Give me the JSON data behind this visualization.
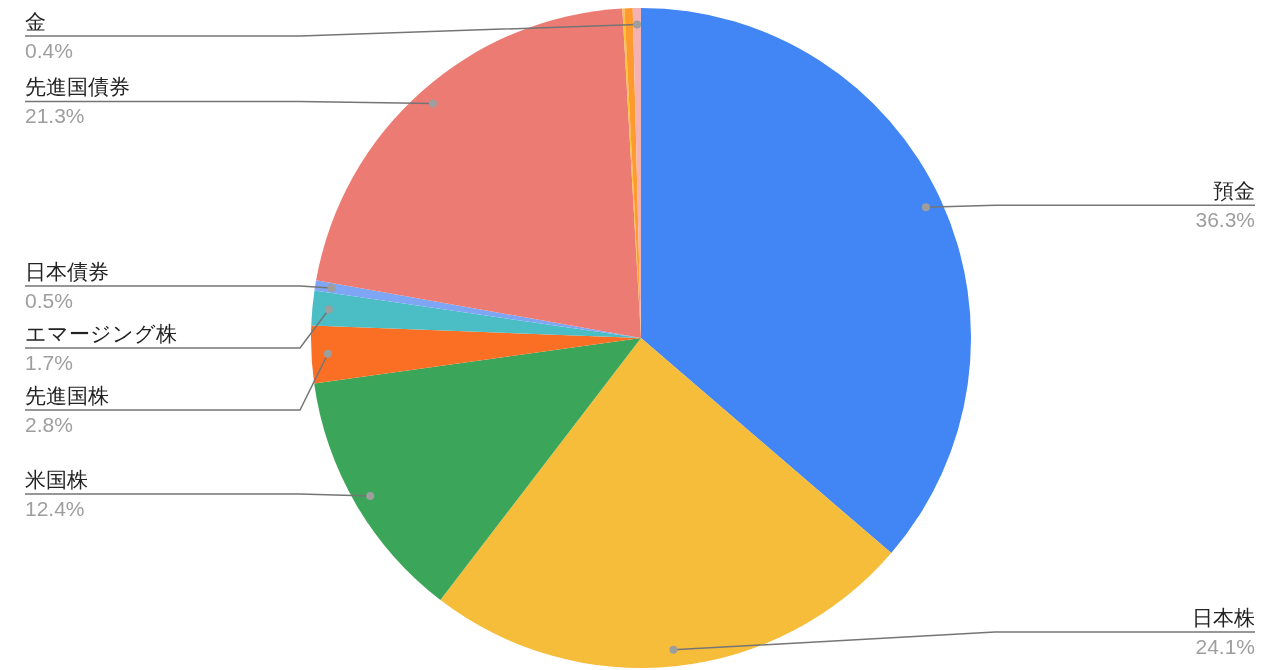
{
  "chart_data": {
    "type": "pie",
    "categories": [
      "預金",
      "日本株",
      "米国株",
      "先進国株",
      "エマージング株",
      "日本債券",
      "先進国債券",
      null,
      null,
      "金"
    ],
    "values": [
      36.3,
      24.1,
      12.4,
      2.8,
      1.7,
      0.5,
      21.3,
      0.1,
      0.4,
      0.4
    ],
    "value_labels": [
      "36.3%",
      "24.1%",
      "12.4%",
      "2.8%",
      "1.7%",
      "0.5%",
      "21.3%",
      null,
      null,
      "0.4%"
    ],
    "colors": [
      "#4285f4",
      "#f6bd3a",
      "#3ba55a",
      "#fb6f24",
      "#4bbdc4",
      "#7fa5f5",
      "#eb7b73",
      "#f7c33b",
      "#ff9b2e",
      "#f4b2b2"
    ]
  }
}
